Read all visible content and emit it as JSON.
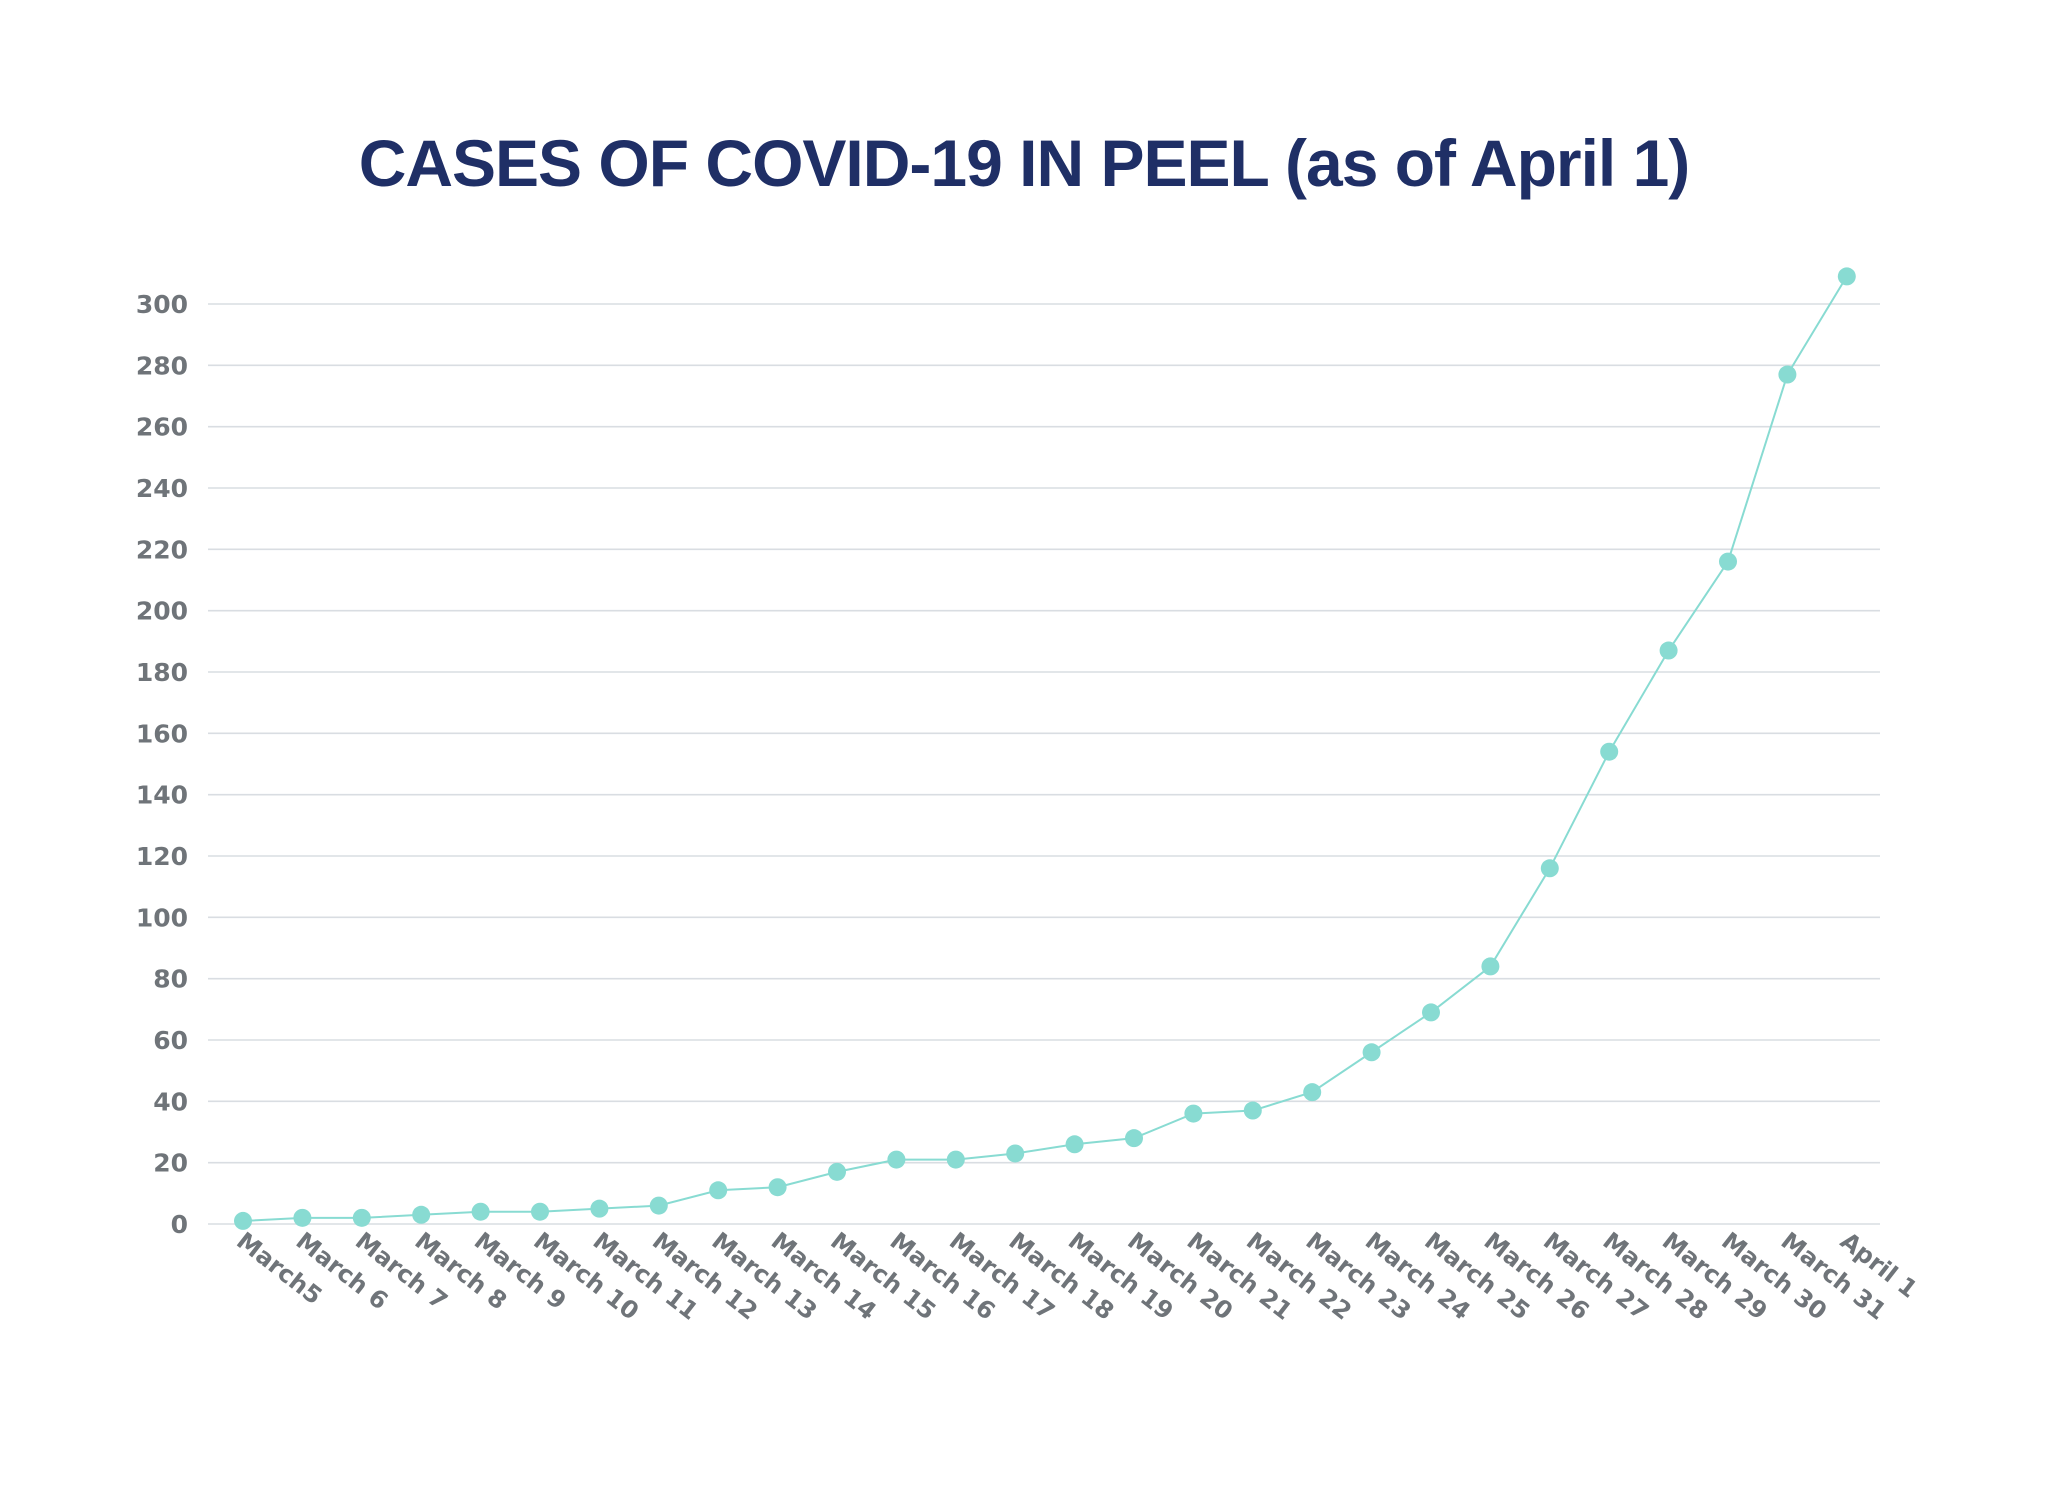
{
  "chart_data": {
    "type": "line",
    "title": "CASES OF COVID-19 IN PEEL (as of April 1)",
    "xlabel": "",
    "ylabel": "",
    "categories": [
      "March5",
      "March 6",
      "March 7",
      "March 8",
      "March 9",
      "March 10",
      "March 11",
      "March 12",
      "March 13",
      "March 14",
      "March 15",
      "March 16",
      "March 17",
      "March 18",
      "March 19",
      "March 20",
      "March 21",
      "March 22",
      "March 23",
      "March 24",
      "March 25",
      "March 26",
      "March 27",
      "March 28",
      "March 29",
      "March 30",
      "March 31",
      "April 1"
    ],
    "series": [
      {
        "values": [
          1,
          2,
          2,
          3,
          4,
          4,
          5,
          6,
          11,
          12,
          17,
          21,
          21,
          23,
          26,
          28,
          36,
          37,
          43,
          56,
          69,
          84,
          116,
          154,
          187,
          216,
          277,
          309
        ]
      }
    ],
    "ylim": [
      0,
      300
    ],
    "yticks": [
      "0",
      "20",
      "40",
      "60",
      "80",
      "100",
      "120",
      "140",
      "160",
      "180",
      "200",
      "220",
      "240",
      "260",
      "280",
      "300"
    ],
    "grid": true,
    "legend": "none",
    "colors": {
      "line": "#88dbd2",
      "title": "#1f2f66",
      "tick": "#6f7479",
      "grid": "#d9dde2"
    }
  }
}
